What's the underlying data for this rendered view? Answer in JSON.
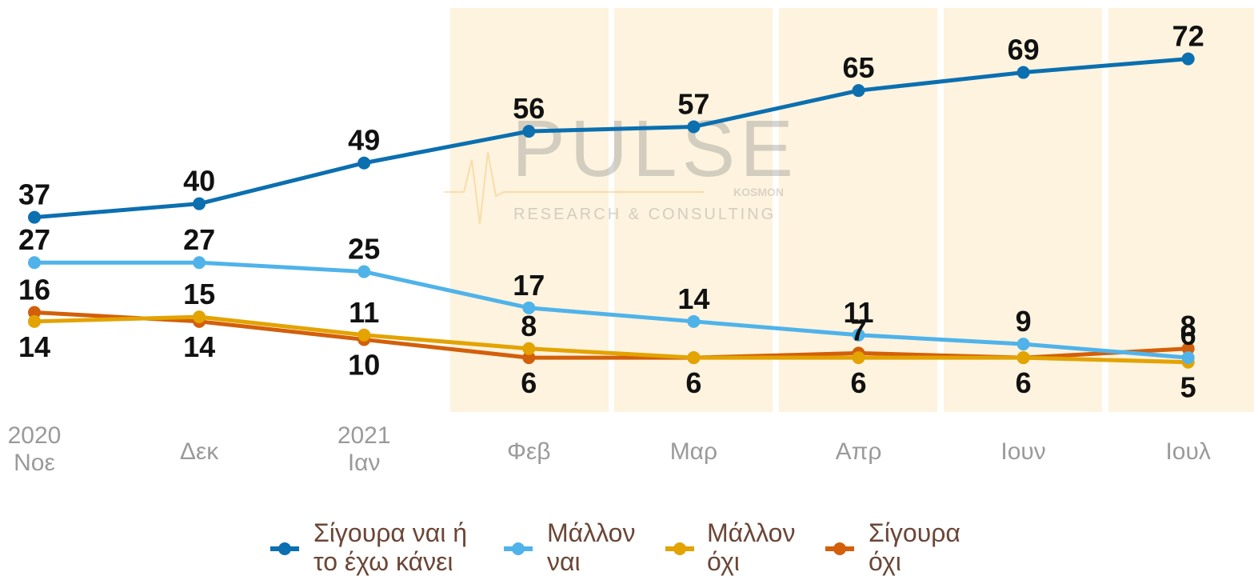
{
  "chart_data": {
    "type": "line",
    "watermark": {
      "brand": "PULSE",
      "sub": "KOSMON",
      "tagline": "RESEARCH & CONSULTING"
    },
    "categories": [
      "2020\nΝοε",
      "Δεκ",
      "2021\nΙαν",
      "Φεβ",
      "Μαρ",
      "Απρ",
      "Ιουν",
      "Ιουλ"
    ],
    "series": [
      {
        "name": "Σίγουρα ναι ή\nτο έχω κάνει",
        "color": "#0b6fb0",
        "values": [
          37,
          40,
          49,
          56,
          57,
          65,
          69,
          72
        ]
      },
      {
        "name": "Μάλλον\nναι",
        "color": "#4fb3ea",
        "values": [
          27,
          27,
          25,
          17,
          14,
          11,
          9,
          6
        ]
      },
      {
        "name": "Μάλλον\nόχι",
        "color": "#e3a300",
        "values": [
          14,
          15,
          11,
          8,
          6,
          6,
          6,
          5
        ]
      },
      {
        "name": "Σίγουρα\nόχι",
        "color": "#d35f0a",
        "values": [
          16,
          14,
          10,
          6,
          6,
          7,
          6,
          8
        ]
      }
    ],
    "ylim": [
      -6,
      85
    ],
    "legend": "bottom"
  }
}
